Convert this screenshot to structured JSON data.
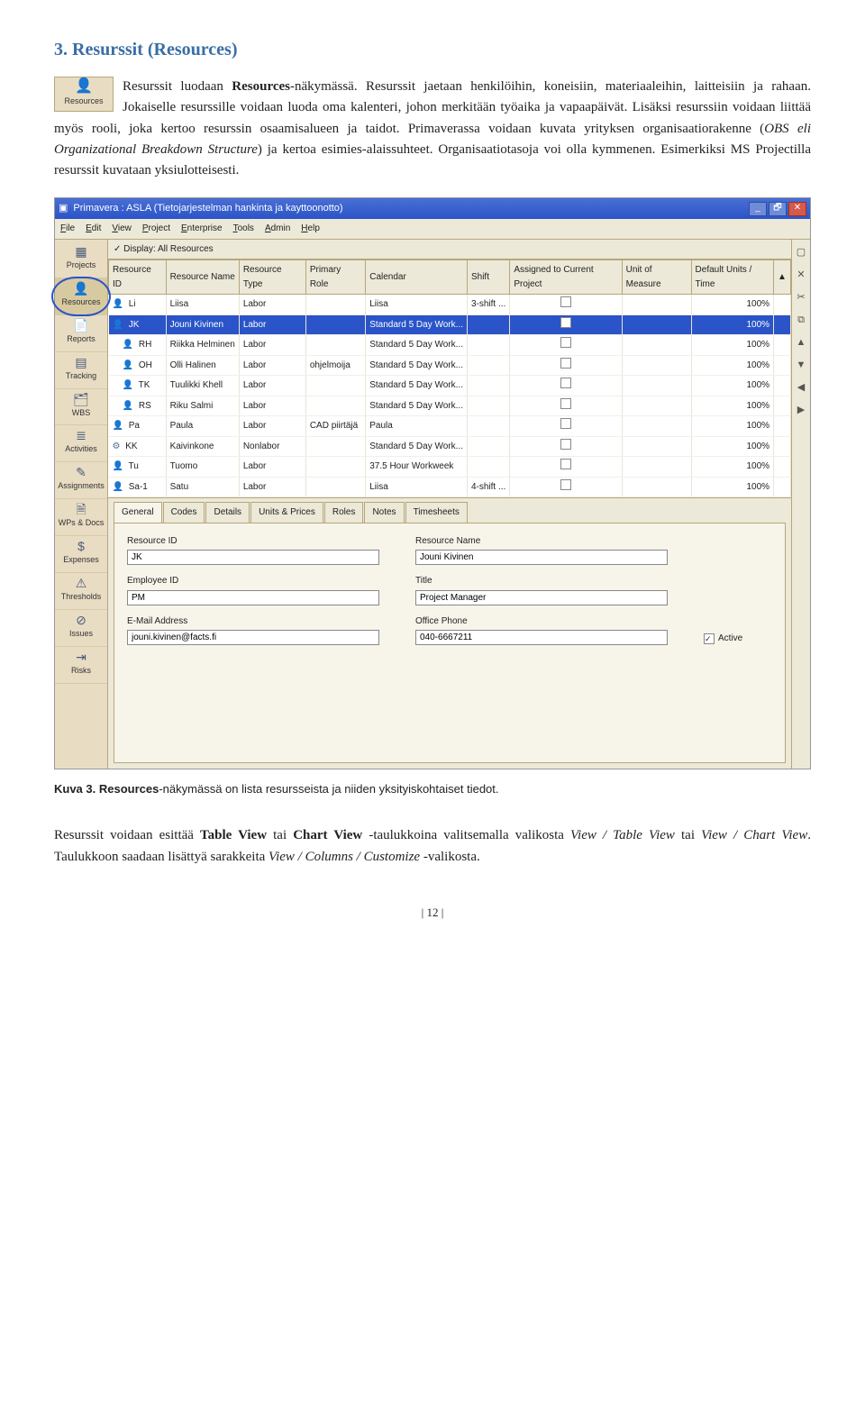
{
  "heading": "3. Resurssit (Resources)",
  "icon_block_label": "Resources",
  "para1_a": "Resurssit luodaan ",
  "para1_b": "Resources",
  "para1_c": "-näkymässä. Resurssit jaetaan henkilöihin, koneisiin, materiaaleihin, laitteisiin ja rahaan. Jokaiselle resurssille voidaan luoda oma kalenteri, johon merkitään työaika ja vapaapäivät. Lisäksi resurssiin voidaan liittää myös rooli, joka kertoo resurssin osaamisalueen ja taidot. Primaverassa voidaan kuvata yrityksen organisaatiorakenne (",
  "para1_d": "OBS eli Organizational Breakdown Structure",
  "para1_e": ") ja kertoa esimies-alaissuhteet. Organisaatiotasoja voi olla kymmenen. Esimerkiksi MS Projectilla resurssit kuvataan yksiulotteisesti.",
  "screenshot": {
    "title": "Primavera : ASLA (Tietojarjestelman hankinta ja kayttoonotto)",
    "menus": [
      "File",
      "Edit",
      "View",
      "Project",
      "Enterprise",
      "Tools",
      "Admin",
      "Help"
    ],
    "left_nav": [
      {
        "label": "Projects",
        "icon": "▦"
      },
      {
        "label": "Resources",
        "icon": "👤",
        "selected": true,
        "circled": true
      },
      {
        "label": "Reports",
        "icon": "📄"
      },
      {
        "label": "Tracking",
        "icon": "▤"
      },
      {
        "label": "WBS",
        "icon": "🗂"
      },
      {
        "label": "Activities",
        "icon": "≣"
      },
      {
        "label": "Assignments",
        "icon": "✎"
      },
      {
        "label": "WPs & Docs",
        "icon": "🗎"
      },
      {
        "label": "Expenses",
        "icon": "$"
      },
      {
        "label": "Thresholds",
        "icon": "⚠"
      },
      {
        "label": "Issues",
        "icon": "⊘"
      },
      {
        "label": "Risks",
        "icon": "⇥"
      }
    ],
    "display_label": "✓ Display: All Resources",
    "columns": [
      "Resource ID",
      "Resource Name",
      "Resource Type",
      "Primary Role",
      "Calendar",
      "Shift",
      "Assigned to Current Project",
      "Unit of Measure",
      "Default Units / Time"
    ],
    "rows": [
      {
        "id": "Li",
        "name": "Liisa",
        "type": "Labor",
        "role": "",
        "cal": "Liisa",
        "shift": "3-shift ...",
        "assigned": false,
        "unit": "",
        "default": "100%",
        "indent": 0,
        "icon": "👤",
        "selected": false
      },
      {
        "id": "JK",
        "name": "Jouni Kivinen",
        "type": "Labor",
        "role": "",
        "cal": "Standard 5 Day Work...",
        "shift": "",
        "assigned": false,
        "unit": "",
        "default": "100%",
        "indent": 0,
        "icon": "👤",
        "selected": true
      },
      {
        "id": "RH",
        "name": "Riikka Helminen",
        "type": "Labor",
        "role": "",
        "cal": "Standard 5 Day Work...",
        "shift": "",
        "assigned": false,
        "unit": "",
        "default": "100%",
        "indent": 1,
        "icon": "👤"
      },
      {
        "id": "OH",
        "name": "Olli Halinen",
        "type": "Labor",
        "role": "ohjelmoija",
        "cal": "Standard 5 Day Work...",
        "shift": "",
        "assigned": false,
        "unit": "",
        "default": "100%",
        "indent": 1,
        "icon": "👤"
      },
      {
        "id": "TK",
        "name": "Tuulikki Khell",
        "type": "Labor",
        "role": "",
        "cal": "Standard 5 Day Work...",
        "shift": "",
        "assigned": false,
        "unit": "",
        "default": "100%",
        "indent": 1,
        "icon": "👤"
      },
      {
        "id": "RS",
        "name": "Riku Salmi",
        "type": "Labor",
        "role": "",
        "cal": "Standard 5 Day Work...",
        "shift": "",
        "assigned": false,
        "unit": "",
        "default": "100%",
        "indent": 1,
        "icon": "👤"
      },
      {
        "id": "Pa",
        "name": "Paula",
        "type": "Labor",
        "role": "CAD piirtäjä",
        "cal": "Paula",
        "shift": "",
        "assigned": false,
        "unit": "",
        "default": "100%",
        "indent": 0,
        "icon": "👤"
      },
      {
        "id": "KK",
        "name": "Kaivinkone",
        "type": "Nonlabor",
        "role": "",
        "cal": "Standard 5 Day Work...",
        "shift": "",
        "assigned": false,
        "unit": "",
        "default": "100%",
        "indent": 0,
        "icon": "⚙"
      },
      {
        "id": "Tu",
        "name": "Tuomo",
        "type": "Labor",
        "role": "",
        "cal": "37.5 Hour Workweek",
        "shift": "",
        "assigned": false,
        "unit": "",
        "default": "100%",
        "indent": 0,
        "icon": "👤"
      },
      {
        "id": "Sa-1",
        "name": "Satu",
        "type": "Labor",
        "role": "",
        "cal": "Liisa",
        "shift": "4-shift ...",
        "assigned": false,
        "unit": "",
        "default": "100%",
        "indent": 0,
        "icon": "👤"
      }
    ],
    "detail_tabs": [
      "General",
      "Codes",
      "Details",
      "Units & Prices",
      "Roles",
      "Notes",
      "Timesheets"
    ],
    "form": {
      "resource_id_label": "Resource ID",
      "resource_id_value": "JK",
      "resource_name_label": "Resource Name",
      "resource_name_value": "Jouni Kivinen",
      "employee_id_label": "Employee ID",
      "employee_id_value": "PM",
      "title_label": "Title",
      "title_value": "Project Manager",
      "email_label": "E-Mail Address",
      "email_value": "jouni.kivinen@facts.fi",
      "office_phone_label": "Office Phone",
      "office_phone_value": "040-6667211",
      "active_label": "Active",
      "active_checked": true
    },
    "right_icons": [
      "▢",
      "✕",
      "✂",
      "⧉",
      "▲",
      "▼",
      "◀",
      "▶"
    ]
  },
  "caption_bold": "Kuva 3. Resources",
  "caption_rest": "-näkymässä on lista resursseista ja niiden yksityiskohtaiset tiedot.",
  "para2_a": "Resurssit voidaan esittää ",
  "para2_b": "Table View",
  "para2_c": " tai ",
  "para2_d": "Chart View",
  "para2_e": " -taulukkoina valitsemalla valikosta ",
  "para2_f": "View / Table View",
  "para2_g": " tai ",
  "para2_h": "View / Chart View",
  "para2_i": ". Taulukkoon saadaan lisättyä sarakkeita ",
  "para2_j": "View / Columns / Customize",
  "para2_k": " -valikosta.",
  "page_num": "| 12 |"
}
